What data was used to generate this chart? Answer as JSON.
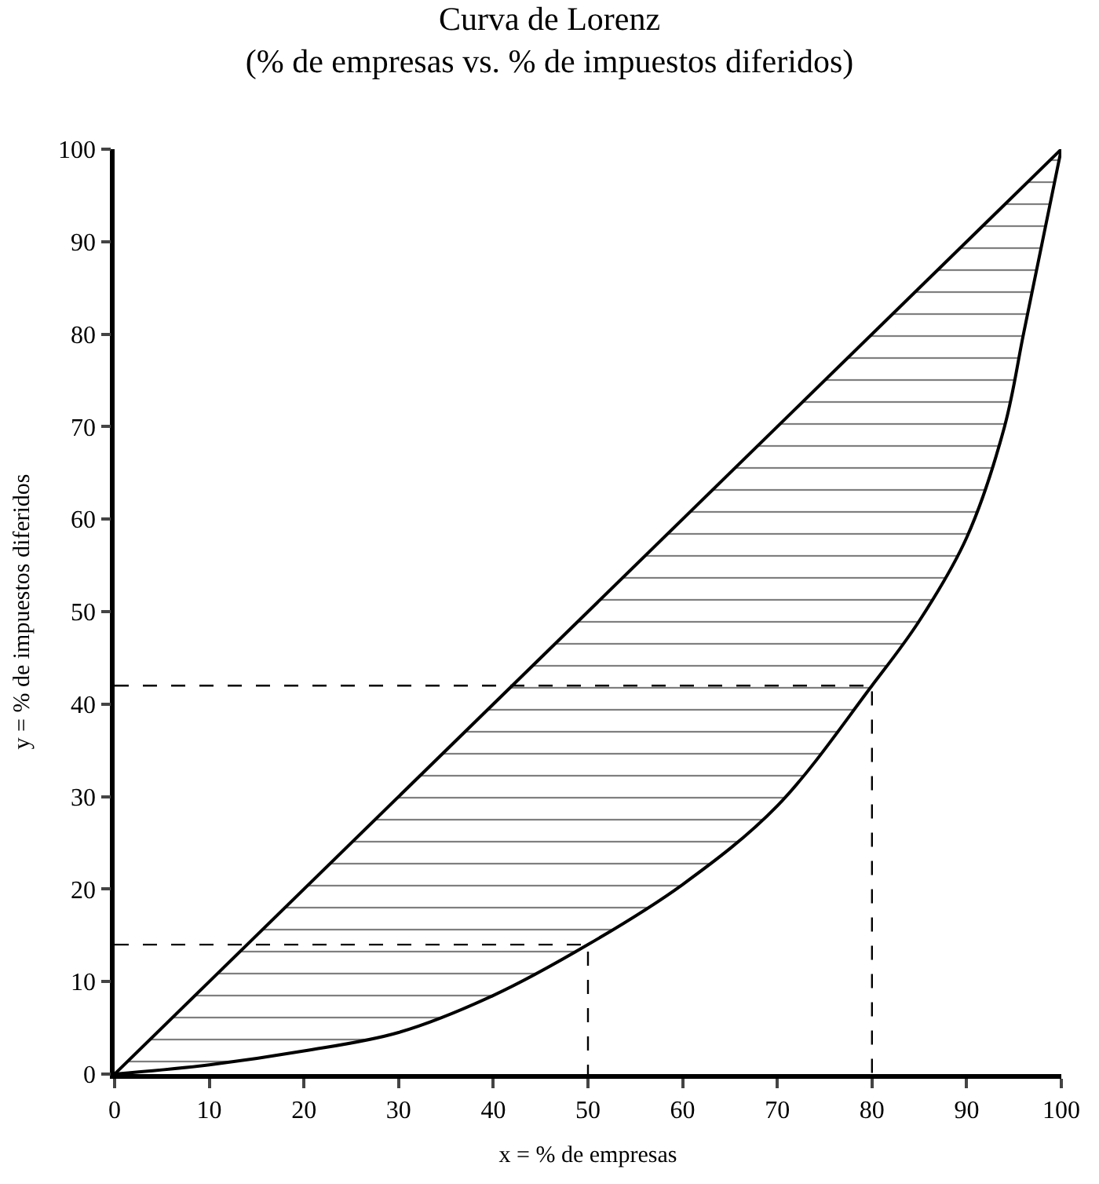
{
  "chart_data": {
    "type": "line",
    "title": "Curva de Lorenz",
    "subtitle": "(% de empresas vs. % de impuestos diferidos)",
    "xlabel": "x = % de empresas",
    "ylabel": "y = % de impuestos diferidos",
    "series": [
      {
        "color": "#000000",
        "x": [
          0,
          100
        ],
        "values": [
          0,
          100
        ]
      },
      {
        "color": "#000000",
        "x": [
          0,
          10,
          20,
          30,
          40,
          50,
          60,
          70,
          80,
          85,
          90,
          94,
          96,
          98,
          100
        ],
        "values": [
          0,
          1,
          2.5,
          4.5,
          8.5,
          14,
          20.5,
          29,
          42,
          49,
          58,
          70,
          80,
          90,
          100
        ],
        "lower": [
          0,
          1,
          2.5,
          4.5,
          8.5,
          14,
          20.5,
          29,
          42,
          49,
          58,
          70,
          80,
          90,
          100
        ],
        "upper": [
          0,
          10,
          20,
          30,
          40,
          50,
          60,
          70,
          80,
          85,
          90,
          94,
          96,
          98,
          100
        ]
      },
      {
        "color": "#000000",
        "x": [
          0,
          50,
          50
        ],
        "values": [
          14,
          14,
          0
        ],
        "line_style": "dashed"
      },
      {
        "color": "#000000",
        "x": [
          0,
          80,
          80
        ],
        "values": [
          42,
          42,
          0
        ],
        "line_style": "dashed"
      }
    ],
    "xlim": [
      0,
      100
    ],
    "ylim": [
      0,
      100
    ],
    "xticks": [
      0,
      10,
      20,
      30,
      40,
      50,
      60,
      70,
      80,
      90,
      100
    ],
    "yticks": [
      0,
      10,
      20,
      30,
      40,
      50,
      60,
      70,
      80,
      90,
      100
    ],
    "marker": "none",
    "line_style": "solid"
  }
}
